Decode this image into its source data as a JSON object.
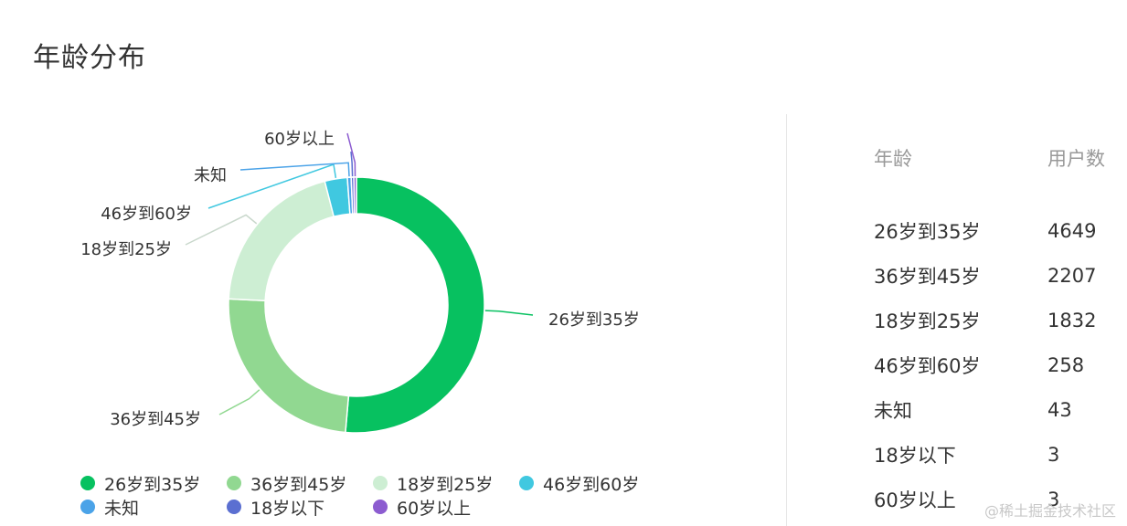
{
  "title": "年龄分布",
  "chart_data": {
    "type": "pie",
    "donut": true,
    "categories": [
      "26岁到35岁",
      "36岁到45岁",
      "18岁到25岁",
      "46岁到60岁",
      "未知",
      "18岁以下",
      "60岁以上"
    ],
    "values": [
      4649,
      2207,
      1832,
      258,
      43,
      3,
      3
    ],
    "colors": [
      "#07c160",
      "#91d891",
      "#cdeed3",
      "#40c8e0",
      "#4ba3e8",
      "#5b6fd1",
      "#8c5cd0"
    ],
    "legend_position": "bottom"
  },
  "table": {
    "headers": [
      "年龄",
      "用户数"
    ],
    "rows": [
      [
        "26岁到35岁",
        "4649"
      ],
      [
        "36岁到45岁",
        "2207"
      ],
      [
        "18岁到25岁",
        "1832"
      ],
      [
        "46岁到60岁",
        "258"
      ],
      [
        "未知",
        "43"
      ],
      [
        "18岁以下",
        "3"
      ],
      [
        "60岁以上",
        "3"
      ]
    ]
  },
  "watermark": "@稀土掘金技术社区"
}
